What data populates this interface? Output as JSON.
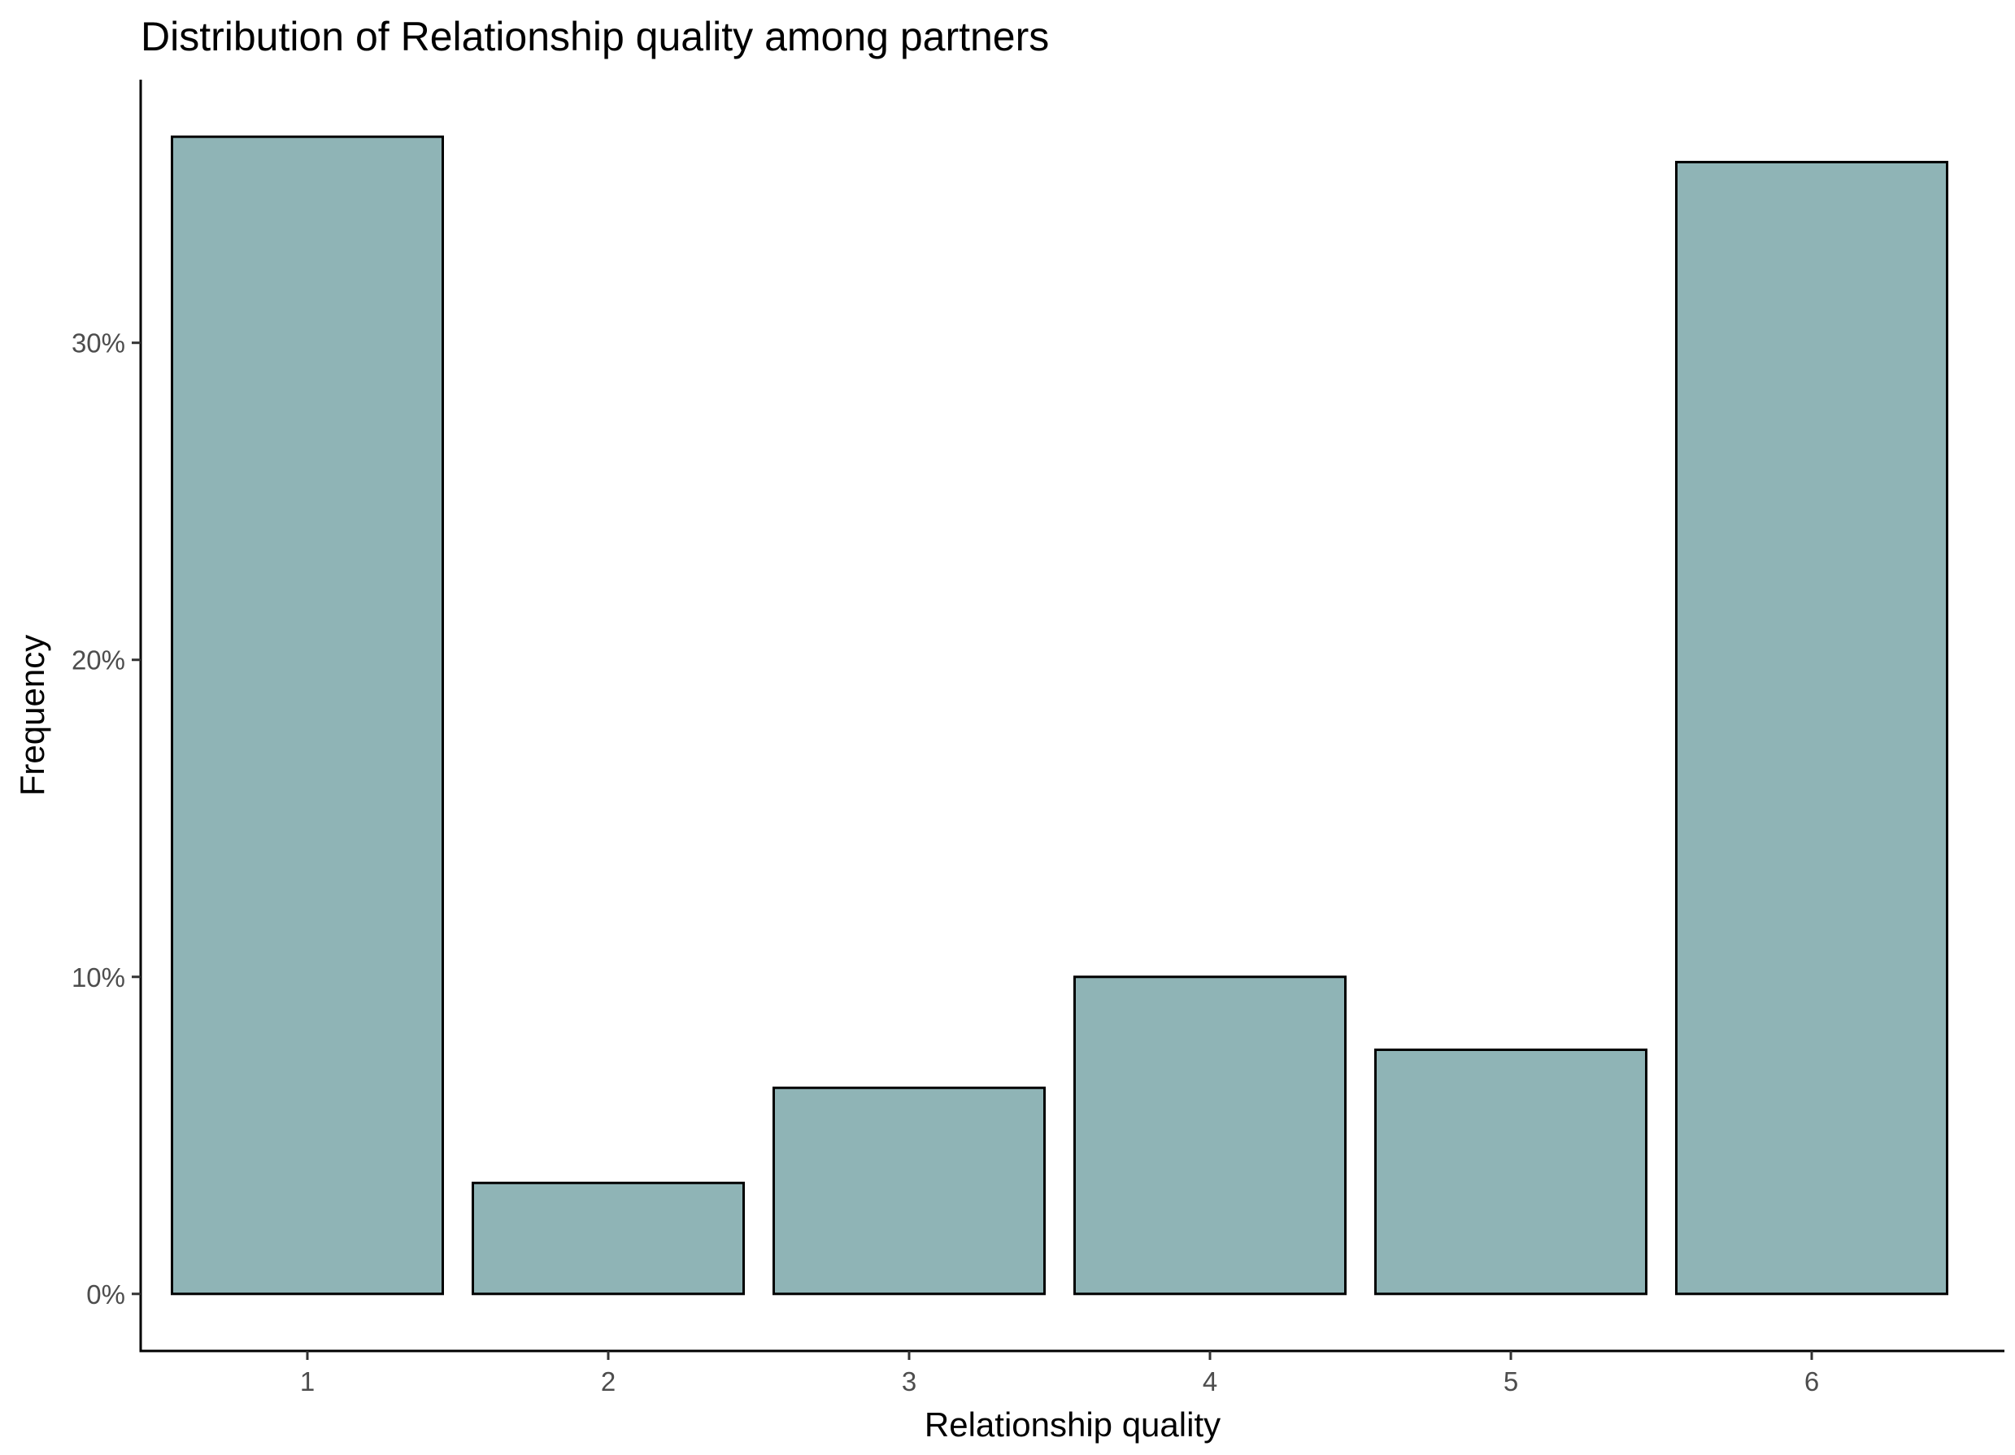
{
  "chart_data": {
    "type": "bar",
    "title": "Distribution of Relationship quality among partners",
    "xlabel": "Relationship quality",
    "ylabel": "Frequency",
    "categories": [
      "1",
      "2",
      "3",
      "4",
      "5",
      "6"
    ],
    "values": [
      36.5,
      3.5,
      6.5,
      10.0,
      7.7,
      35.7
    ],
    "value_unit": "%",
    "yticks": [
      "0%",
      "10%",
      "20%",
      "30%"
    ],
    "ytick_values": [
      0,
      10,
      20,
      30
    ],
    "ylim": [
      -1.8,
      38.3
    ],
    "grid": false,
    "legend": "none",
    "bar_fill": "#8fb4b6",
    "bar_stroke": "#000000"
  }
}
